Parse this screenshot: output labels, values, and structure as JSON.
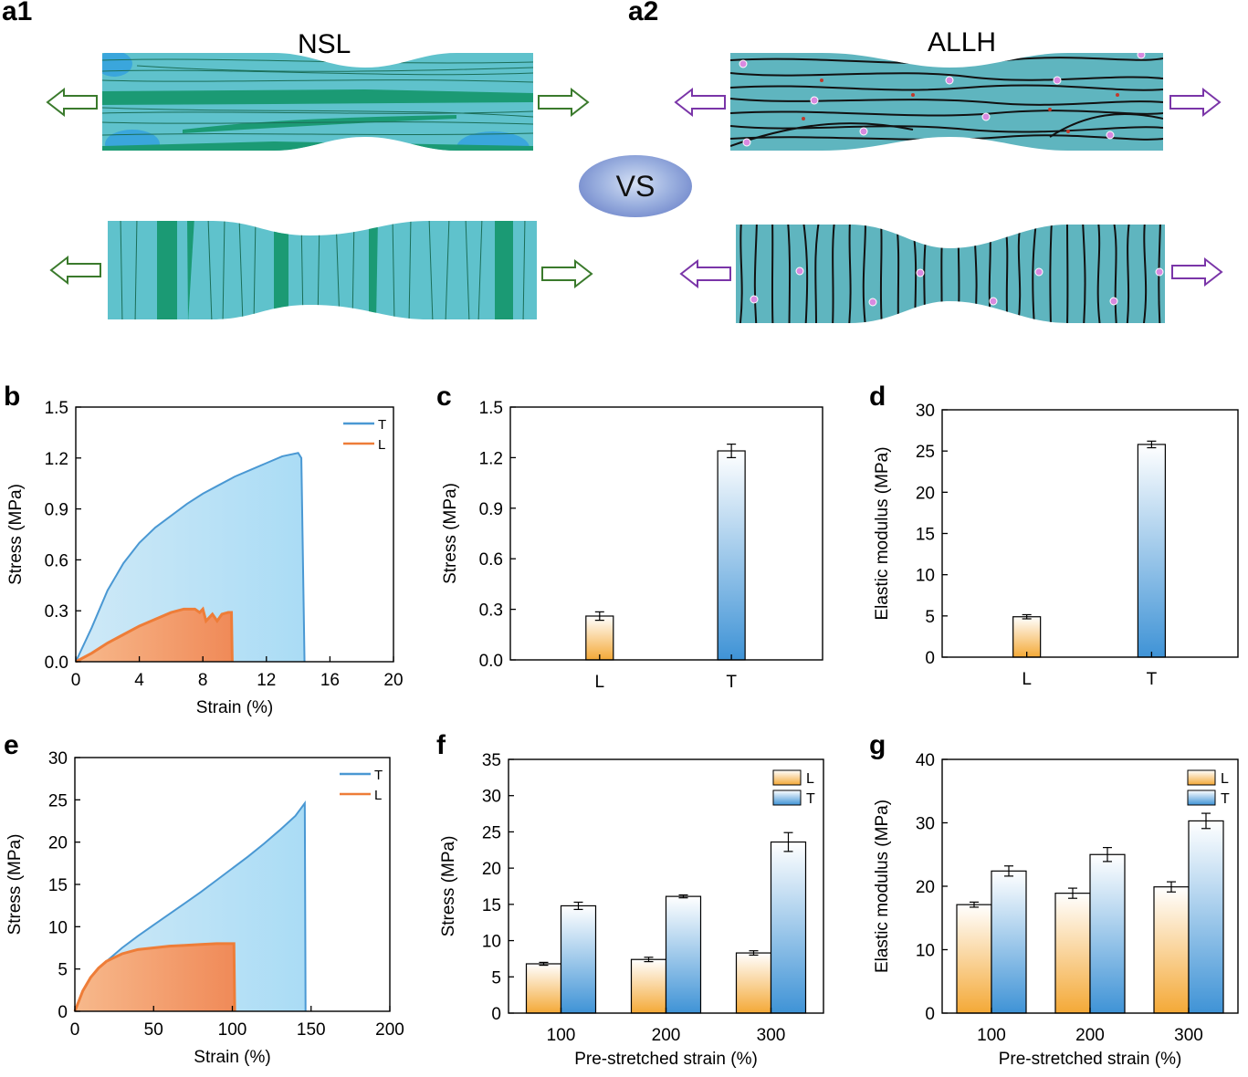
{
  "panels": {
    "a1": {
      "label": "a1",
      "title": "NSL"
    },
    "a2": {
      "label": "a2",
      "title": "ALLH"
    },
    "vs": "VS",
    "b": "b",
    "c": "c",
    "d": "d",
    "e": "e",
    "f": "f",
    "g": "g"
  },
  "colors": {
    "T": "#4a98d3",
    "L": "#ee7d38",
    "nsl_body": "#5fc2cc",
    "nsl_fiber": "#1b9a74",
    "allh_body": "#5fb5bf",
    "green_arrow": "#3a7a2c",
    "purple_arrow": "#7a35a8"
  },
  "chart_data": [
    {
      "id": "b",
      "type": "area",
      "xlabel": "Strain (%)",
      "ylabel": "Stress (MPa)",
      "xlim": [
        0,
        20
      ],
      "ylim": [
        0,
        1.5
      ],
      "xticks": [
        "0",
        "4",
        "8",
        "12",
        "16",
        "20"
      ],
      "yticks": [
        "0.0",
        "0.3",
        "0.6",
        "0.9",
        "1.2",
        "1.5"
      ],
      "legend_position": "top-right",
      "series": [
        {
          "name": "T",
          "x": [
            0,
            1,
            2,
            3,
            4,
            5,
            6,
            7,
            8,
            9,
            10,
            11,
            12,
            13,
            14,
            14.2,
            14.4
          ],
          "y": [
            0,
            0.2,
            0.42,
            0.58,
            0.7,
            0.79,
            0.86,
            0.93,
            0.99,
            1.04,
            1.09,
            1.13,
            1.17,
            1.21,
            1.23,
            1.2,
            0
          ]
        },
        {
          "name": "L",
          "x": [
            0,
            1,
            2,
            3,
            4,
            5,
            6,
            6.8,
            7.5,
            7.8,
            8.0,
            8.2,
            8.6,
            8.9,
            9.2,
            9.6,
            9.8,
            9.85
          ],
          "y": [
            0,
            0.05,
            0.11,
            0.16,
            0.21,
            0.25,
            0.29,
            0.31,
            0.31,
            0.29,
            0.31,
            0.24,
            0.28,
            0.24,
            0.28,
            0.29,
            0.29,
            0
          ]
        }
      ]
    },
    {
      "id": "c",
      "type": "bar",
      "ylabel": "Stress (MPa)",
      "categories": [
        "L",
        "T"
      ],
      "values": [
        0.26,
        1.24
      ],
      "errors": [
        0.025,
        0.04
      ],
      "ylim": [
        0,
        1.5
      ],
      "yticks": [
        "0.0",
        "0.3",
        "0.6",
        "0.9",
        "1.2",
        "1.5"
      ]
    },
    {
      "id": "d",
      "type": "bar",
      "ylabel": "Elastic modulus (MPa)",
      "categories": [
        "L",
        "T"
      ],
      "values": [
        4.9,
        25.8
      ],
      "errors": [
        0.25,
        0.4
      ],
      "ylim": [
        0,
        30
      ],
      "yticks": [
        "0",
        "5",
        "10",
        "15",
        "20",
        "25",
        "30"
      ]
    },
    {
      "id": "e",
      "type": "area",
      "xlabel": "Strain (%)",
      "ylabel": "Stress (MPa)",
      "xlim": [
        0,
        200
      ],
      "ylim": [
        0,
        30
      ],
      "xticks": [
        "0",
        "50",
        "100",
        "150",
        "200"
      ],
      "yticks": [
        "0",
        "5",
        "10",
        "15",
        "20",
        "25",
        "30"
      ],
      "legend_position": "top-right",
      "series": [
        {
          "name": "T",
          "x": [
            0,
            5,
            10,
            20,
            30,
            40,
            50,
            60,
            70,
            80,
            90,
            100,
            110,
            120,
            130,
            140,
            146,
            146.5
          ],
          "y": [
            0,
            2.2,
            3.7,
            5.9,
            7.5,
            8.9,
            10.2,
            11.5,
            12.8,
            14.1,
            15.5,
            16.9,
            18.3,
            19.8,
            21.4,
            23.1,
            24.6,
            0
          ]
        },
        {
          "name": "L",
          "x": [
            0,
            5,
            10,
            15,
            20,
            30,
            40,
            50,
            60,
            70,
            80,
            90,
            100,
            101,
            101.5
          ],
          "y": [
            0,
            2.4,
            4.0,
            5.1,
            5.9,
            6.8,
            7.3,
            7.5,
            7.7,
            7.8,
            7.9,
            8.0,
            8.0,
            8.0,
            0
          ]
        }
      ]
    },
    {
      "id": "f",
      "type": "bar",
      "xlabel": "Pre-stretched strain (%)",
      "ylabel": "Stress (MPa)",
      "categories": [
        "100",
        "200",
        "300"
      ],
      "ylim": [
        0,
        35
      ],
      "yticks": [
        "0",
        "5",
        "10",
        "15",
        "20",
        "25",
        "30",
        "35"
      ],
      "legend_position": "top-right",
      "series": [
        {
          "name": "L",
          "values": [
            6.8,
            7.4,
            8.3
          ],
          "errors": [
            0.2,
            0.3,
            0.3
          ]
        },
        {
          "name": "T",
          "values": [
            14.8,
            16.1,
            23.6
          ],
          "errors": [
            0.5,
            0.2,
            1.3
          ]
        }
      ]
    },
    {
      "id": "g",
      "type": "bar",
      "xlabel": "Pre-stretched strain (%)",
      "ylabel": "Elastic modulus (MPa)",
      "categories": [
        "100",
        "200",
        "300"
      ],
      "ylim": [
        0,
        40
      ],
      "yticks": [
        "0",
        "10",
        "20",
        "30",
        "40"
      ],
      "legend_position": "top-right",
      "series": [
        {
          "name": "L",
          "values": [
            17.1,
            18.9,
            19.9
          ],
          "errors": [
            0.4,
            0.8,
            0.8
          ]
        },
        {
          "name": "T",
          "values": [
            22.4,
            25.0,
            30.3
          ],
          "errors": [
            0.8,
            1.1,
            1.2
          ]
        }
      ]
    }
  ]
}
